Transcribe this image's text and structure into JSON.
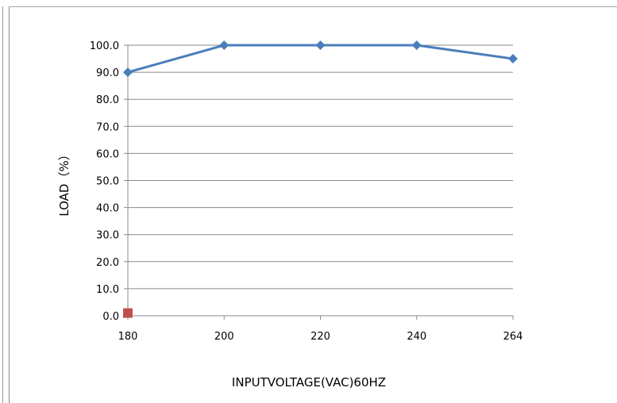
{
  "chart_data": {
    "type": "line",
    "categories": [
      "180",
      "200",
      "220",
      "240",
      "264"
    ],
    "series": [
      {
        "values": [
          90,
          100,
          100,
          100,
          95
        ],
        "color": "#4a7ebb",
        "marker": "diamond"
      }
    ],
    "secondary_point": {
      "x_index": 0,
      "value": 1,
      "color": "#c0504d",
      "marker": "square"
    },
    "yticks": [
      "100.0",
      "90.0",
      "80.0",
      "70.0",
      "60.0",
      "50.0",
      "40.0",
      "30.0",
      "20.0",
      "10.0",
      "0.0"
    ],
    "ylim": [
      0,
      100
    ],
    "ylabel": "LOAD（%）",
    "xlabel": "INPUTVOLTAGE(VAC)60HZ",
    "grid": true,
    "legend": "none"
  }
}
